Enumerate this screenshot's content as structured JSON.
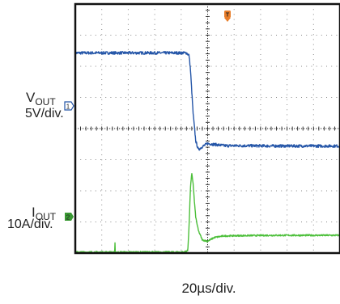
{
  "chart_data": {
    "type": "line",
    "title": "",
    "xlabel": "20µs/div.",
    "x_divisions": 10,
    "y_divisions": 8,
    "xlim": [
      0,
      200
    ],
    "xunit": "µs",
    "grid": true,
    "trigger_marker": {
      "label": "T",
      "x": 86,
      "color": "#e87d2a"
    },
    "channels": [
      {
        "id": "ch1",
        "label_main": "V",
        "label_sub": "OUT",
        "scale": "5V/div.",
        "marker": "1",
        "marker_color": "#2556a8",
        "color": "#2556a8",
        "zero_div": 3.68,
        "noise": 0.09,
        "points": [
          [
            0,
            6.43
          ],
          [
            84,
            6.43
          ],
          [
            86,
            6.35
          ],
          [
            87,
            5.9
          ],
          [
            89,
            4.5
          ],
          [
            91,
            3.6
          ],
          [
            93,
            3.32
          ],
          [
            96,
            3.42
          ],
          [
            100,
            3.52
          ],
          [
            105,
            3.49
          ],
          [
            113,
            3.45
          ],
          [
            125,
            3.45
          ],
          [
            150,
            3.44
          ],
          [
            200,
            3.44
          ]
        ]
      },
      {
        "id": "ch2",
        "label_main": "I",
        "label_sub": "OUT",
        "scale": "10A/div.",
        "marker": "2",
        "marker_color": "#3a9a34",
        "color": "#4cbf3a",
        "zero_div": 0.04,
        "noise": 0.05,
        "points": [
          [
            0,
            0.03
          ],
          [
            82,
            0.03
          ],
          [
            85,
            0.08
          ],
          [
            86,
            0.9
          ],
          [
            87,
            2.1
          ],
          [
            88,
            2.55
          ],
          [
            89,
            2.25
          ],
          [
            90,
            1.65
          ],
          [
            91,
            1.15
          ],
          [
            93,
            0.72
          ],
          [
            96,
            0.42
          ],
          [
            100,
            0.38
          ],
          [
            105,
            0.5
          ],
          [
            112,
            0.55
          ],
          [
            125,
            0.56
          ],
          [
            150,
            0.57
          ],
          [
            200,
            0.57
          ]
        ],
        "spikes": [
          [
            30,
            0.28
          ]
        ]
      }
    ]
  }
}
